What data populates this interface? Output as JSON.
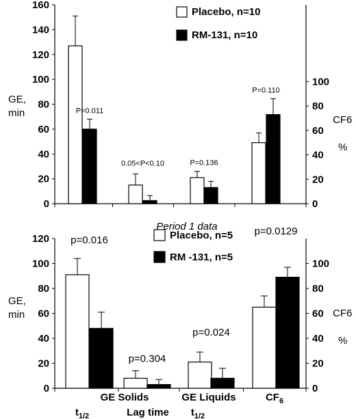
{
  "caption": "Period 1 data",
  "sub_labels": [
    {
      "main": "t",
      "sub": "1/2"
    },
    {
      "main": "Lag time",
      "sub": ""
    },
    {
      "main": "t",
      "sub": "1/2"
    }
  ],
  "colors": {
    "placebo_fill": "#ffffff",
    "rm131_fill": "#000000",
    "axis": "#000000"
  },
  "chart_data": [
    {
      "type": "bar",
      "categories": [
        "GE Solids t1/2",
        "GE Solids Lag time",
        "GE Liquids t1/2",
        "CF6"
      ],
      "category_labels": [
        "",
        "",
        "",
        ""
      ],
      "series": [
        {
          "name": "Placebo, n=10",
          "values": [
            127,
            15,
            21,
            50
          ],
          "errors": [
            24,
            9,
            5,
            8
          ]
        },
        {
          "name": "RM-131, n=10",
          "values": [
            60,
            2.5,
            13,
            73
          ],
          "errors": [
            8,
            4,
            5,
            13
          ]
        }
      ],
      "annotations": [
        "P=0.011",
        "0.05<P<0.10",
        "P=0.136",
        "P=0.110"
      ],
      "left_axis": {
        "title_lines": [
          "GE,",
          "min"
        ],
        "ylim": [
          0,
          160
        ],
        "ticks": [
          0,
          20,
          40,
          60,
          80,
          100,
          120,
          140,
          160
        ]
      },
      "right_axis": {
        "title_lines": [
          "CF6",
          "%"
        ],
        "ylim": [
          0,
          140
        ],
        "ticks": [
          0,
          20,
          40,
          60,
          80,
          100
        ]
      },
      "legend_position": "top-right"
    },
    {
      "type": "bar",
      "categories": [
        "GE Solids t1/2",
        "GE Solids Lag time",
        "GE Liquids t1/2",
        "CF6"
      ],
      "category_labels": [
        "GE Solids",
        "",
        "GE Liquids",
        "CF6"
      ],
      "series": [
        {
          "name": "Placebo, n=5",
          "values": [
            91,
            8,
            21,
            65
          ],
          "errors": [
            13,
            6,
            8,
            9
          ]
        },
        {
          "name": "RM -131, n=5",
          "values": [
            48,
            3,
            8,
            89
          ],
          "errors": [
            13,
            4,
            8,
            8
          ]
        }
      ],
      "annotations": [
        "p=0.016",
        "p=0.304",
        "p=0.024",
        "p=0.0129"
      ],
      "left_axis": {
        "title_lines": [
          "GE,",
          "min"
        ],
        "ylim": [
          0,
          120
        ],
        "ticks": [
          0,
          20,
          40,
          60,
          80,
          100,
          120
        ]
      },
      "right_axis": {
        "title_lines": [
          "CF6",
          "%"
        ],
        "ylim": [
          0,
          120
        ],
        "ticks": [
          0,
          20,
          40,
          60,
          80,
          100
        ]
      },
      "legend_position": "top-center"
    }
  ]
}
